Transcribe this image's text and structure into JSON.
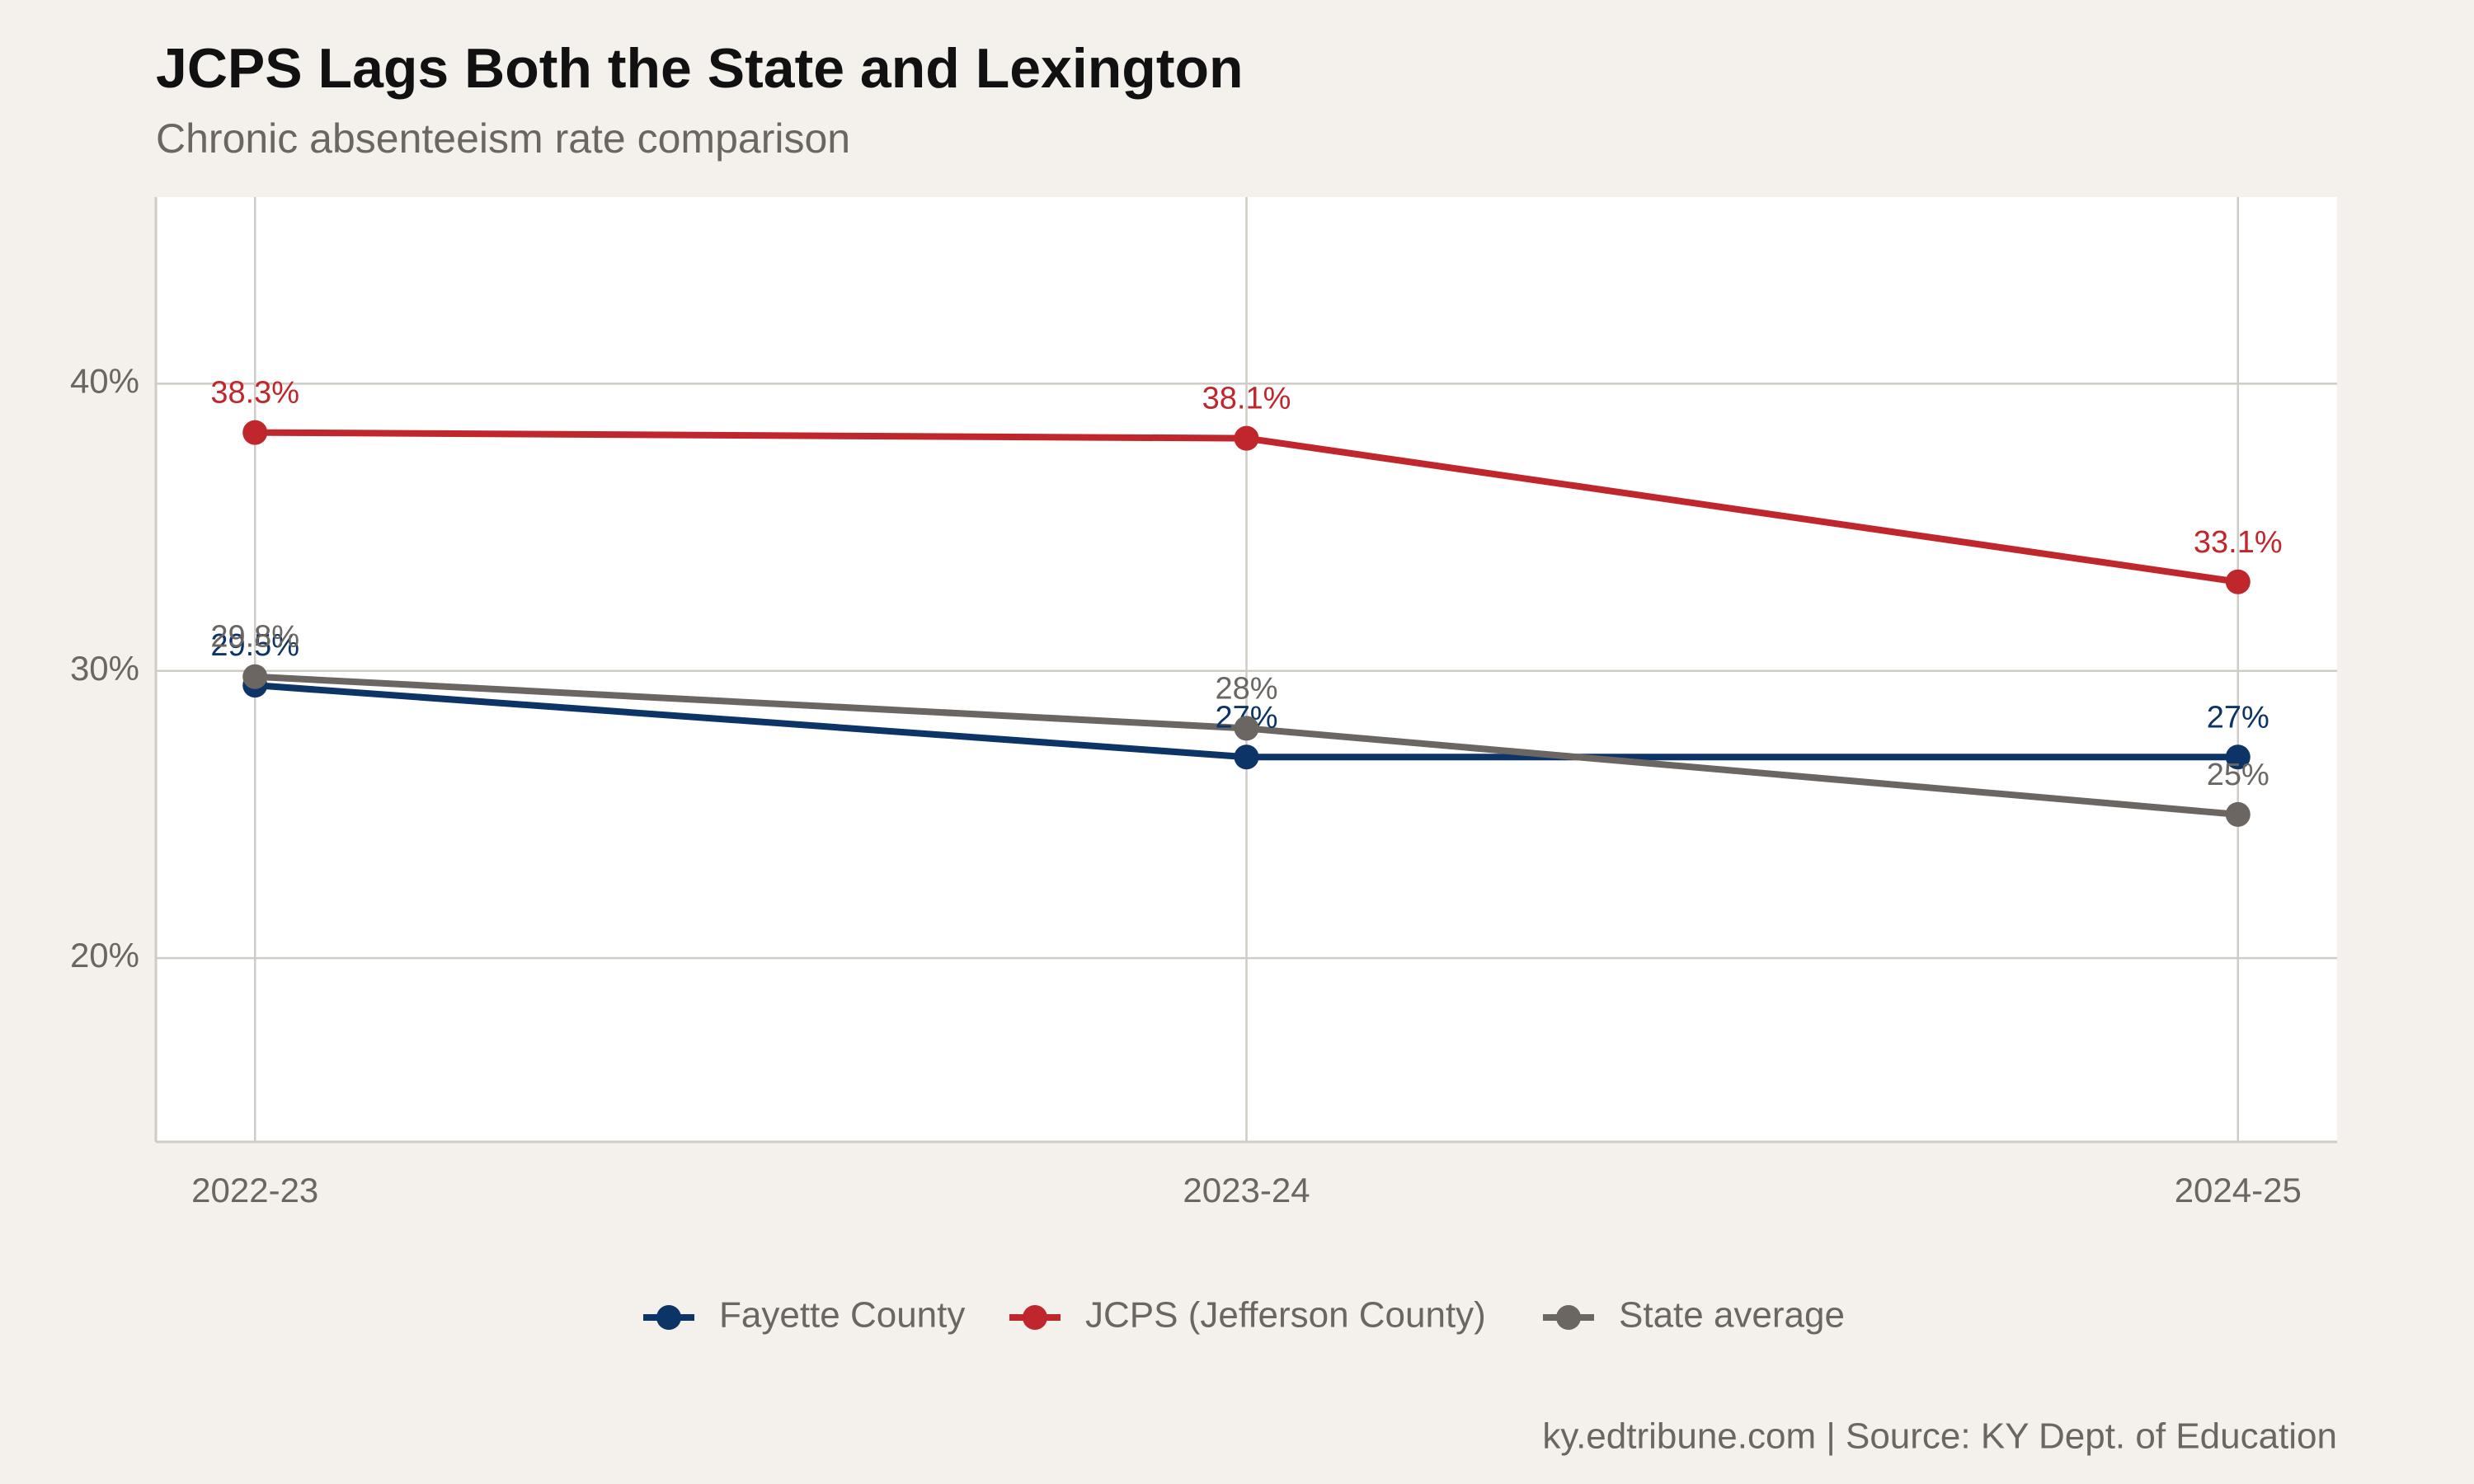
{
  "chart_data": {
    "type": "line",
    "title": "JCPS Lags Both the State and Lexington",
    "subtitle": "Chronic absenteeism rate comparison",
    "caption": "ky.edtribune.com | Source: KY Dept. of Education",
    "categories": [
      "2022-23",
      "2023-24",
      "2024-25"
    ],
    "series": [
      {
        "name": "Fayette County",
        "color": "#0d3466",
        "values": [
          29.5,
          27,
          27
        ],
        "value_labels": [
          "29.5%",
          "27%",
          "27%"
        ]
      },
      {
        "name": "JCPS (Jefferson County)",
        "color": "#c0272d",
        "values": [
          38.3,
          38.1,
          33.1
        ],
        "value_labels": [
          "38.3%",
          "38.1%",
          "33.1%"
        ]
      },
      {
        "name": "State average",
        "color": "#6b6662",
        "values": [
          29.8,
          28,
          25
        ],
        "value_labels": [
          "29.8%",
          "28%",
          "25%"
        ]
      }
    ],
    "ylim": [
      13.6,
      46.5
    ],
    "yticks": [
      {
        "value": 20,
        "label": "20%"
      },
      {
        "value": 30,
        "label": "30%"
      },
      {
        "value": 40,
        "label": "40%"
      }
    ],
    "grid": true,
    "legend": "bottom"
  }
}
